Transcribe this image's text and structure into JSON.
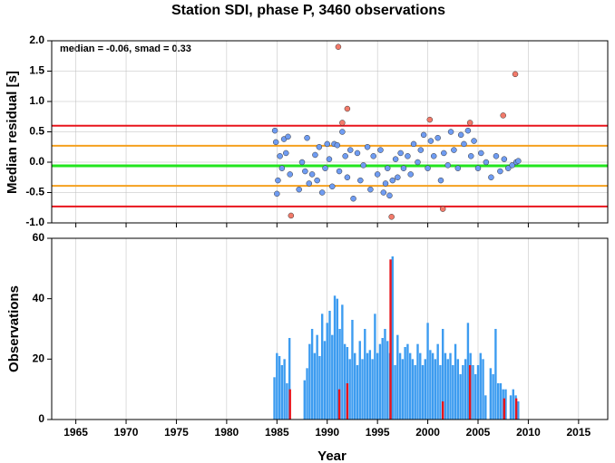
{
  "chart_data": [
    {
      "type": "scatter",
      "title": "Station SDI, phase P, 3460 observations",
      "annotation": "median = -0.06, smad = 0.33",
      "y_label": "Median residual [s]",
      "xlim": [
        1962.6,
        2017.9
      ],
      "xticks": [
        1965,
        1970,
        1975,
        1980,
        1985,
        1990,
        1995,
        2000,
        2005,
        2010,
        2015
      ],
      "ylim": [
        -1,
        2
      ],
      "yticks": [
        {
          "value": -1,
          "label": "-1.0"
        },
        {
          "value": -0.5,
          "label": "-0.5"
        },
        {
          "value": 0,
          "label": "0.0"
        },
        {
          "value": 0.5,
          "label": "0.5"
        },
        {
          "value": 1,
          "label": "1.0"
        },
        {
          "value": 1.5,
          "label": "1.5"
        },
        {
          "value": 2,
          "label": "2.0"
        }
      ],
      "grid": true,
      "hlines": [
        {
          "value": 0.6,
          "color": "#e8141c"
        },
        {
          "value": 0.27,
          "color": "#f5a01e"
        },
        {
          "value": -0.06,
          "color": "#22e51e"
        },
        {
          "value": -0.39,
          "color": "#f5a01e"
        },
        {
          "value": -0.73,
          "color": "#e8141c"
        }
      ],
      "series": [
        {
          "color": "#6f9cf2",
          "x": [
            1984.8,
            1984.9,
            1985.0,
            1985.1,
            1985.3,
            1985.5,
            1985.7,
            1985.9,
            1986.1,
            1986.3,
            1987.2,
            1987.5,
            1987.8,
            1988.0,
            1988.2,
            1988.5,
            1988.8,
            1989.0,
            1989.2,
            1989.5,
            1989.8,
            1990.0,
            1990.2,
            1990.5,
            1990.7,
            1991.0,
            1991.2,
            1991.5,
            1991.8,
            1992.0,
            1992.3,
            1992.6,
            1993.0,
            1993.3,
            1993.6,
            1994.0,
            1994.3,
            1994.6,
            1995.0,
            1995.3,
            1995.6,
            1995.8,
            1996.0,
            1996.2,
            1996.5,
            1996.8,
            1997.0,
            1997.3,
            1997.6,
            1998.0,
            1998.3,
            1998.6,
            1999.0,
            1999.3,
            1999.6,
            2000.0,
            2000.3,
            2000.6,
            2001.0,
            2001.3,
            2001.6,
            2002.0,
            2002.3,
            2002.6,
            2003.0,
            2003.3,
            2003.6,
            2004.0,
            2004.3,
            2004.6,
            2005.0,
            2005.3,
            2005.8,
            2006.3,
            2006.8,
            2007.2,
            2007.6,
            2008.0,
            2008.4,
            2008.8,
            2009.0
          ],
          "values": [
            0.52,
            0.33,
            -0.52,
            -0.3,
            0.1,
            -0.1,
            0.38,
            0.15,
            0.42,
            -0.2,
            -0.45,
            0.0,
            -0.15,
            0.4,
            -0.35,
            -0.2,
            0.12,
            -0.3,
            0.25,
            -0.5,
            -0.1,
            0.3,
            0.05,
            -0.4,
            0.3,
            0.28,
            -0.15,
            0.5,
            0.1,
            -0.25,
            0.2,
            -0.6,
            0.15,
            -0.3,
            -0.05,
            0.25,
            -0.45,
            0.1,
            -0.2,
            0.2,
            -0.5,
            -0.35,
            -0.1,
            -0.55,
            -0.3,
            0.05,
            -0.25,
            0.15,
            -0.1,
            0.1,
            -0.2,
            0.3,
            0.0,
            0.2,
            0.45,
            -0.1,
            0.35,
            0.1,
            0.4,
            -0.3,
            0.15,
            -0.05,
            0.5,
            0.2,
            -0.1,
            0.45,
            0.3,
            0.52,
            0.1,
            0.35,
            -0.1,
            0.15,
            0.0,
            -0.25,
            0.1,
            -0.15,
            0.05,
            -0.1,
            -0.05,
            0.0,
            0.02
          ]
        },
        {
          "color": "#f27a6a",
          "x": [
            1986.4,
            1991.1,
            1991.5,
            1992.0,
            1996.4,
            2000.2,
            2001.5,
            2004.2,
            2007.5,
            2008.7
          ],
          "values": [
            -0.88,
            1.9,
            0.65,
            0.88,
            -0.9,
            0.7,
            -0.77,
            0.65,
            0.77,
            1.45
          ]
        }
      ]
    },
    {
      "type": "bar",
      "x_label": "Year",
      "y_label": "Observations",
      "xlim": [
        1962.6,
        2017.9
      ],
      "xticks": [
        1965,
        1970,
        1975,
        1980,
        1985,
        1990,
        1995,
        2000,
        2005,
        2010,
        2015
      ],
      "ylim": [
        0,
        60
      ],
      "yticks": [
        0,
        20,
        40,
        60
      ],
      "grid": true,
      "series": [
        {
          "color": "#3d9cf0",
          "x": [
            1984.75,
            1985,
            1985.25,
            1985.5,
            1985.75,
            1986,
            1986.25,
            1987.75,
            1988,
            1988.25,
            1988.5,
            1988.75,
            1989,
            1989.25,
            1989.5,
            1989.75,
            1990,
            1990.25,
            1990.5,
            1990.75,
            1991,
            1991.25,
            1991.5,
            1991.75,
            1992,
            1992.25,
            1992.5,
            1992.75,
            1993,
            1993.25,
            1993.5,
            1993.75,
            1994,
            1994.25,
            1994.5,
            1994.75,
            1995,
            1995.25,
            1995.5,
            1995.75,
            1996,
            1996.25,
            1996.5,
            1996.75,
            1997,
            1997.25,
            1997.5,
            1997.75,
            1998,
            1998.25,
            1998.5,
            1998.75,
            1999,
            1999.25,
            1999.5,
            1999.75,
            2000,
            2000.25,
            2000.5,
            2000.75,
            2001,
            2001.25,
            2001.5,
            2001.75,
            2002,
            2002.25,
            2002.5,
            2002.75,
            2003,
            2003.25,
            2003.5,
            2003.75,
            2004,
            2004.25,
            2004.5,
            2004.75,
            2005,
            2005.25,
            2005.5,
            2005.75,
            2006.25,
            2006.5,
            2006.75,
            2007,
            2007.25,
            2007.5,
            2007.75,
            2008.25,
            2008.5,
            2008.75,
            2009
          ],
          "values": [
            14,
            22,
            21,
            18,
            20,
            12,
            27,
            13,
            17,
            25,
            30,
            22,
            28,
            21,
            35,
            26,
            32,
            36,
            28,
            41,
            40,
            30,
            38,
            25,
            24,
            20,
            33,
            22,
            18,
            26,
            20,
            30,
            22,
            23,
            20,
            35,
            22,
            25,
            27,
            30,
            26,
            22,
            54,
            18,
            28,
            22,
            20,
            24,
            25,
            22,
            20,
            18,
            25,
            22,
            18,
            20,
            32,
            23,
            22,
            20,
            25,
            18,
            30,
            22,
            20,
            22,
            18,
            25,
            20,
            15,
            18,
            20,
            32,
            22,
            18,
            15,
            18,
            22,
            20,
            8,
            17,
            15,
            30,
            12,
            12,
            10,
            10,
            8,
            10,
            8,
            6
          ]
        },
        {
          "color": "#e8141c",
          "x": [
            1986.3,
            1991.2,
            1992.0,
            1996.3,
            2001.5,
            2004.2,
            2007.6,
            2008.8
          ],
          "values": [
            10,
            10,
            12,
            53,
            6,
            18,
            7,
            7
          ]
        }
      ]
    }
  ]
}
